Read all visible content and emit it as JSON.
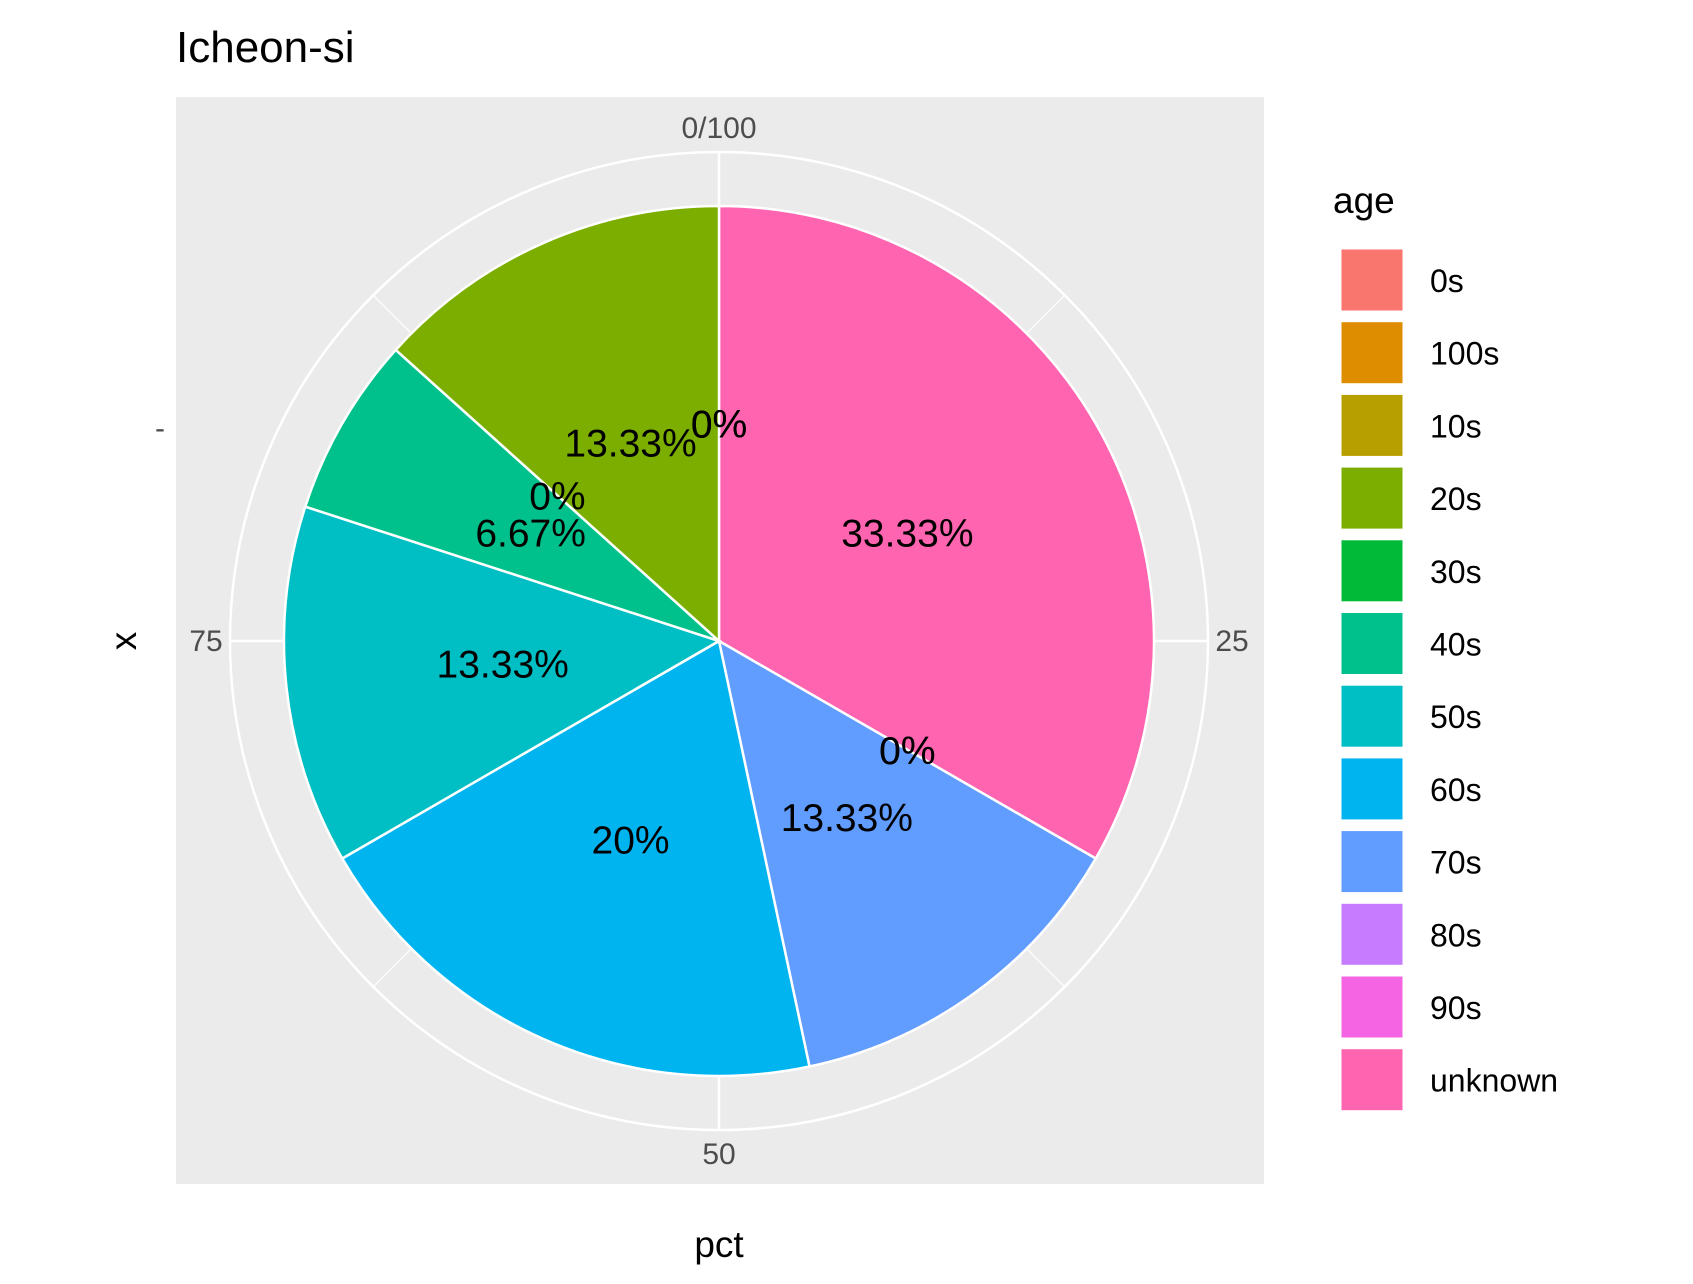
{
  "chart_data": {
    "type": "pie",
    "title": "Icheon-si",
    "xlabel": "pct",
    "ylabel": "x",
    "y_tick_label": "-",
    "angular_ticks": [
      "0/100",
      "25",
      "50",
      "75"
    ],
    "angular_tick_values": [
      0,
      25,
      50,
      75
    ],
    "grid": true,
    "legend": {
      "title": "age",
      "position": "right"
    },
    "slices": [
      {
        "label": "0s",
        "value": 0,
        "text": "0%",
        "color": "#F8766D"
      },
      {
        "label": "100s",
        "value": 0,
        "text": "0%",
        "color": "#DE8C00"
      },
      {
        "label": "10s",
        "value": 0,
        "text": "0%",
        "color": "#B79F00"
      },
      {
        "label": "20s",
        "value": 13.33,
        "text": "13.33%",
        "color": "#7CAE00"
      },
      {
        "label": "30s",
        "value": 0,
        "text": "0%",
        "color": "#00BA38"
      },
      {
        "label": "40s",
        "value": 6.67,
        "text": "6.67%",
        "color": "#00C08B"
      },
      {
        "label": "50s",
        "value": 13.33,
        "text": "13.33%",
        "color": "#00BFC4"
      },
      {
        "label": "60s",
        "value": 20,
        "text": "20%",
        "color": "#00B4F0"
      },
      {
        "label": "70s",
        "value": 13.33,
        "text": "13.33%",
        "color": "#619CFF"
      },
      {
        "label": "80s",
        "value": 0,
        "text": "0%",
        "color": "#C77CFF"
      },
      {
        "label": "90s",
        "value": 0,
        "text": "0%",
        "color": "#F564E3"
      },
      {
        "label": "unknown",
        "value": 33.33,
        "text": "33.33%",
        "color": "#FF64B0"
      }
    ]
  },
  "colors": {
    "panel_background": "#EBEBEB",
    "grid": "#FFFFFF"
  }
}
